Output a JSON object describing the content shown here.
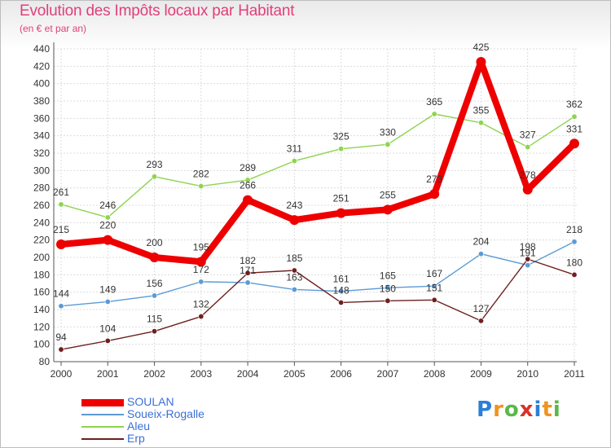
{
  "title": "Evolution des Impôts locaux par Habitant",
  "subtitle": "(en € et par an)",
  "brand": {
    "letters": [
      {
        "ch": "P",
        "color": "#2b7fd6"
      },
      {
        "ch": "r",
        "color": "#f0931e"
      },
      {
        "ch": "o",
        "color": "#58b947"
      },
      {
        "ch": "x",
        "color": "#d6332b"
      },
      {
        "ch": "i",
        "color": "#2b7fd6"
      },
      {
        "ch": "t",
        "color": "#f0931e"
      },
      {
        "ch": "i",
        "color": "#58b947"
      }
    ]
  },
  "chart_data": {
    "type": "line",
    "title": "Evolution des Impôts locaux par Habitant",
    "subtitle": "(en € et par an)",
    "xlabel": "",
    "ylabel": "",
    "categories": [
      "2000",
      "2001",
      "2002",
      "2003",
      "2004",
      "2005",
      "2006",
      "2007",
      "2008",
      "2009",
      "2010",
      "2011"
    ],
    "ylim": [
      80,
      440
    ],
    "ytick_step": 20,
    "grid": true,
    "legend_position": "bottom-left",
    "series": [
      {
        "name": "Aleu",
        "color": "#8ed44e",
        "weight": "thin",
        "values": [
          261,
          246,
          293,
          282,
          289,
          311,
          325,
          330,
          365,
          355,
          327,
          362
        ]
      },
      {
        "name": "Soueix-Rogalle",
        "color": "#5b9bd5",
        "weight": "thin",
        "values": [
          144,
          149,
          156,
          172,
          171,
          163,
          161,
          165,
          167,
          204,
          191,
          218
        ]
      },
      {
        "name": "Erp",
        "color": "#6e1f1f",
        "weight": "thin",
        "values": [
          94,
          104,
          115,
          132,
          182,
          185,
          148,
          150,
          151,
          127,
          198,
          180
        ]
      },
      {
        "name": "SOULAN",
        "color": "#ee0000",
        "weight": "thick",
        "values": [
          215,
          220,
          200,
          195,
          266,
          243,
          251,
          255,
          273,
          425,
          278,
          331
        ]
      }
    ],
    "legend_order": [
      "SOULAN",
      "Soueix-Rogalle",
      "Aleu",
      "Erp"
    ]
  }
}
